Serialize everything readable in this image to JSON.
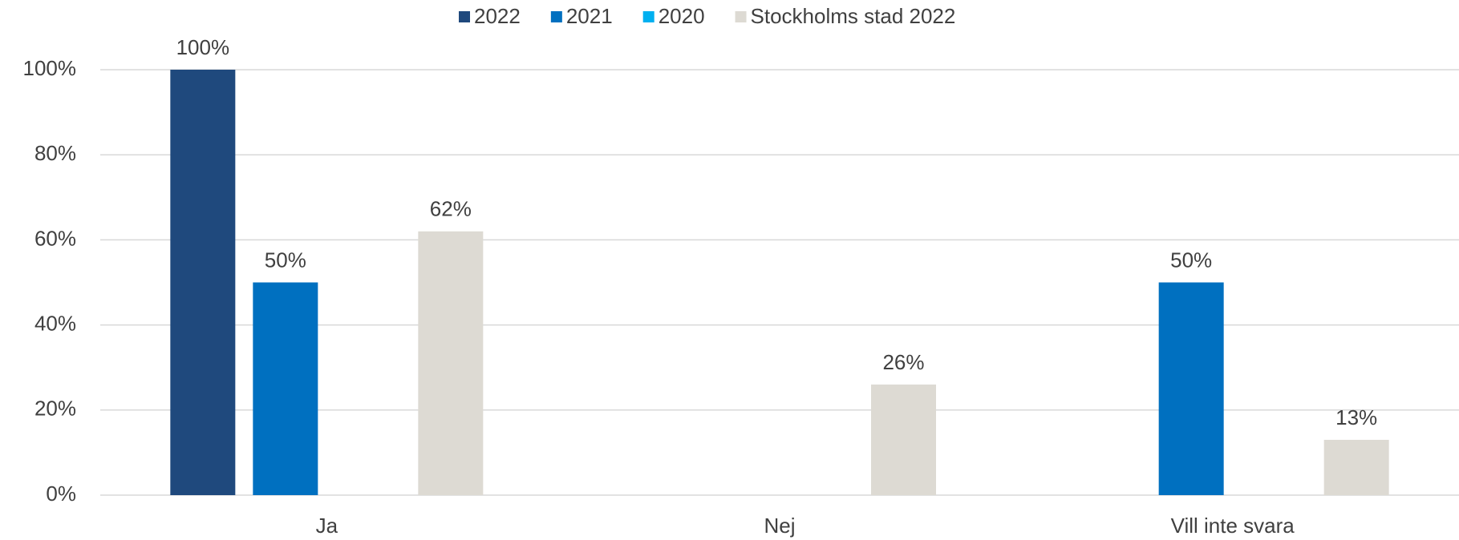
{
  "chart_data": {
    "type": "bar",
    "categories": [
      "Ja",
      "Nej",
      "Vill inte svara"
    ],
    "series": [
      {
        "name": "2022",
        "color": "#1f497d",
        "values": [
          100,
          null,
          null
        ],
        "value_labels": [
          "100%",
          null,
          null
        ]
      },
      {
        "name": "2021",
        "color": "#0070c0",
        "values": [
          50,
          null,
          50
        ],
        "value_labels": [
          "50%",
          null,
          "50%"
        ]
      },
      {
        "name": "2020",
        "color": "#00b0f0",
        "values": [
          null,
          null,
          null
        ],
        "value_labels": [
          null,
          null,
          null
        ]
      },
      {
        "name": "Stockholms stad 2022",
        "color": "#dddad3",
        "values": [
          62,
          26,
          13
        ],
        "value_labels": [
          "62%",
          "26%",
          "13%"
        ]
      }
    ],
    "ylim": [
      0,
      100
    ],
    "yticks": [
      {
        "value": 0,
        "label": "0%"
      },
      {
        "value": 20,
        "label": "20%"
      },
      {
        "value": 40,
        "label": "40%"
      },
      {
        "value": 60,
        "label": "60%"
      },
      {
        "value": 80,
        "label": "80%"
      },
      {
        "value": 100,
        "label": "100%"
      }
    ],
    "grid": true,
    "legend": "top"
  }
}
